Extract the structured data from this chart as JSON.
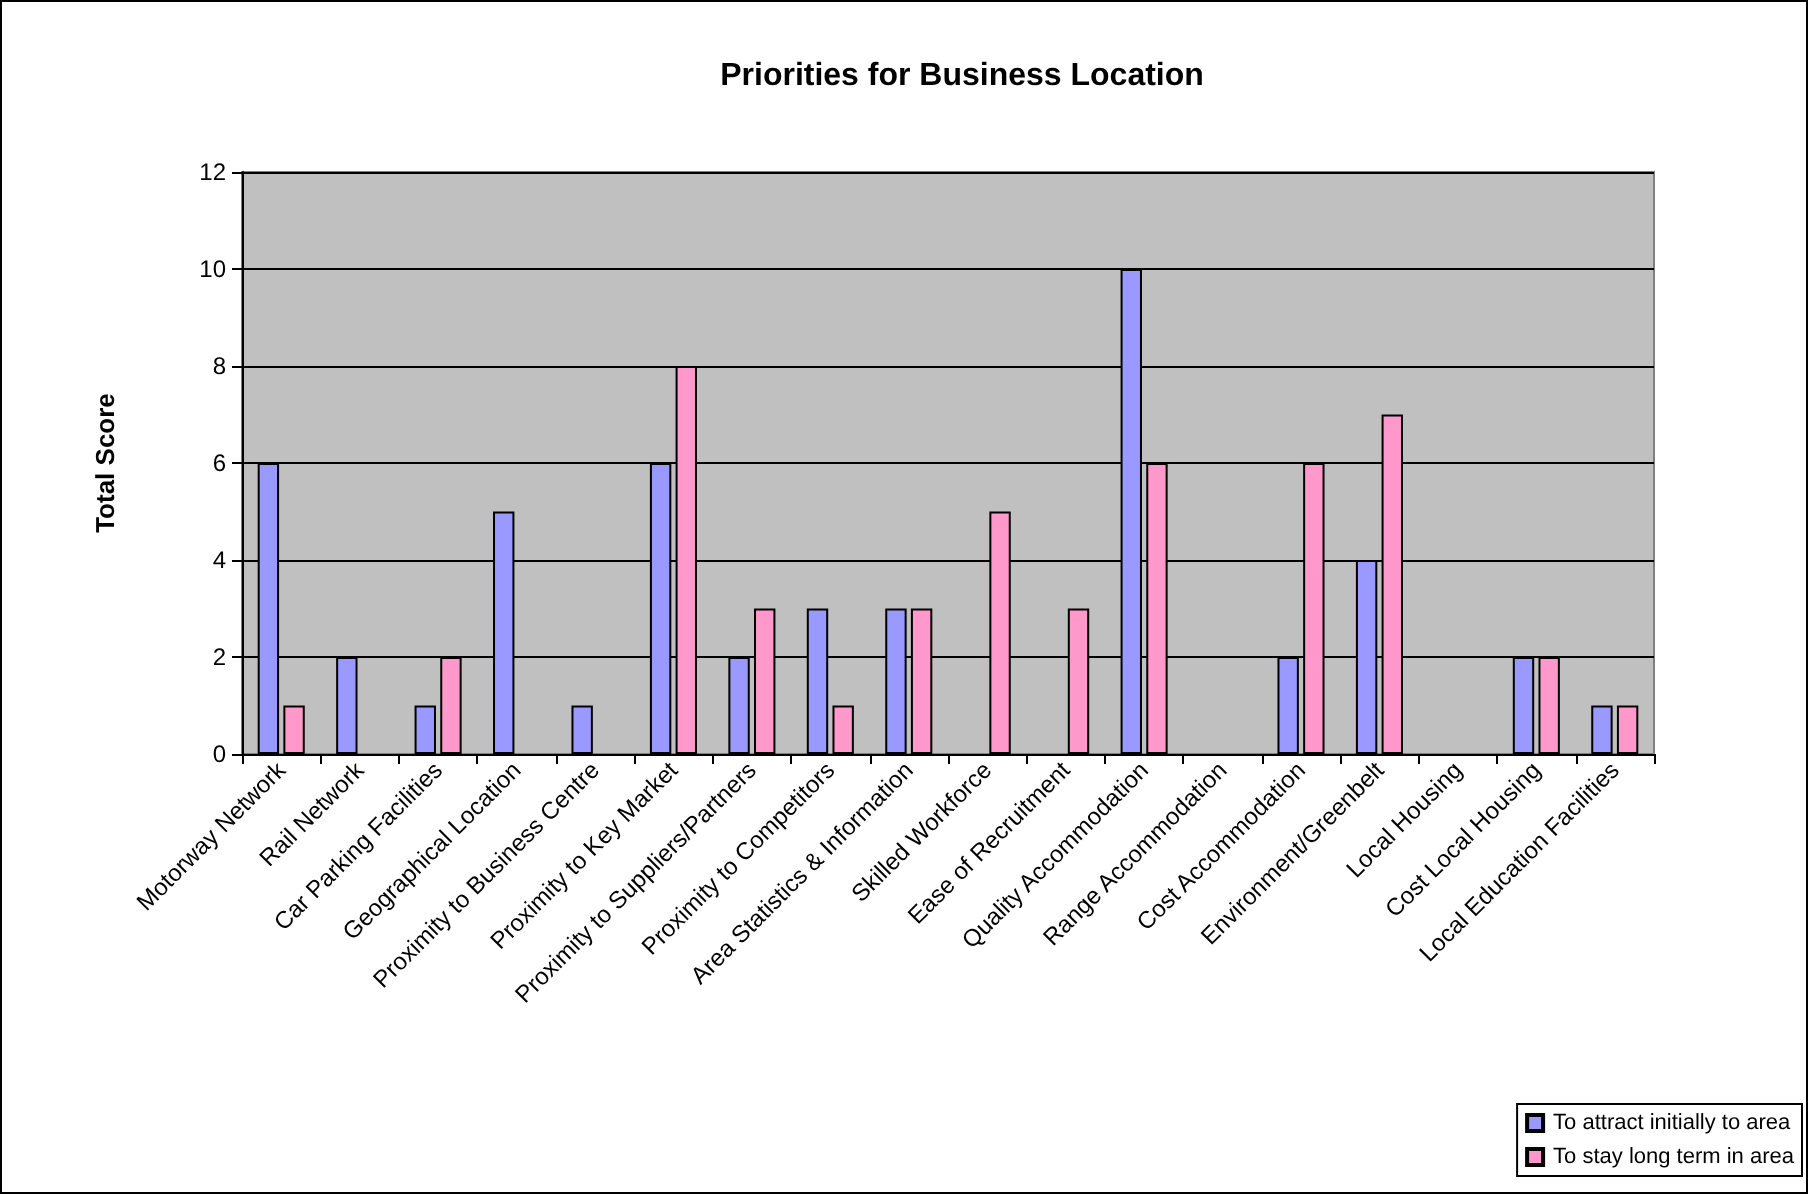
{
  "chart_data": {
    "type": "bar",
    "title": "Priorities for Business Location",
    "ylabel": "Total Score",
    "categories": [
      "Motorway Network",
      "Rail Network",
      "Car Parking Facilities",
      "Geographical Location",
      "Proximity to Business Centre",
      "Proximity to Key Market",
      "Proximity to Suppliers/Partners",
      "Proximity to Competitors",
      "Area Statistics & Information",
      "Skilled Workforce",
      "Ease of Recruitment",
      "Quality Accommodation",
      "Range Accommodation",
      "Cost Accommodation",
      "Environment/Greenbelt",
      "Local Housing",
      "Cost Local Housing",
      "Local Education Facilities"
    ],
    "series": [
      {
        "name": "To attract initially to area",
        "color": "#9999ff",
        "values": [
          6,
          2,
          1,
          5,
          1,
          6,
          2,
          3,
          3,
          0,
          0,
          10,
          0,
          2,
          4,
          0,
          2,
          1
        ]
      },
      {
        "name": "To stay long term in area",
        "color": "#ff99cc",
        "values": [
          1,
          0,
          2,
          0,
          0,
          8,
          3,
          1,
          3,
          5,
          3,
          6,
          0,
          6,
          7,
          0,
          2,
          1
        ]
      }
    ],
    "ylim": [
      0,
      12
    ],
    "yticks": [
      0,
      2,
      4,
      6,
      8,
      10,
      12
    ],
    "grid": "y",
    "legend": "bottom right"
  }
}
